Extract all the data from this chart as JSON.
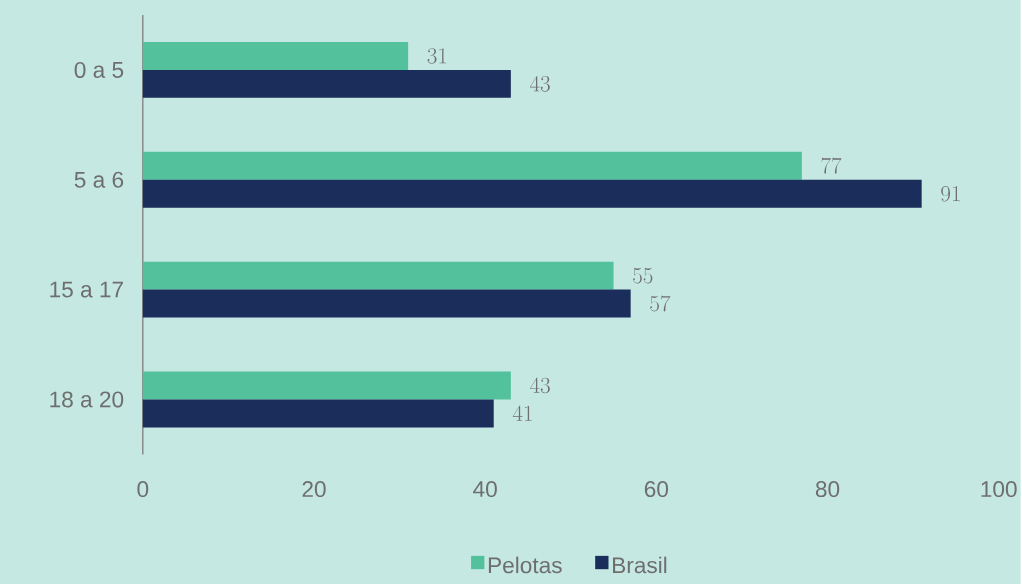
{
  "chart_data": {
    "type": "bar",
    "orientation": "horizontal",
    "categories": [
      "0 a 5",
      "5 a 6",
      "15 a 17",
      "18 a 20"
    ],
    "series": [
      {
        "name": "Pelotas",
        "color": "#52c19c",
        "values": [
          31,
          77,
          55,
          43
        ]
      },
      {
        "name": "Brasil",
        "color": "#1b2d5a",
        "values": [
          43,
          91,
          57,
          41
        ]
      }
    ],
    "xlim": [
      0,
      100
    ],
    "xticks": [
      0,
      20,
      40,
      60,
      80,
      100
    ],
    "data_labels": true,
    "legend": "bottom"
  }
}
